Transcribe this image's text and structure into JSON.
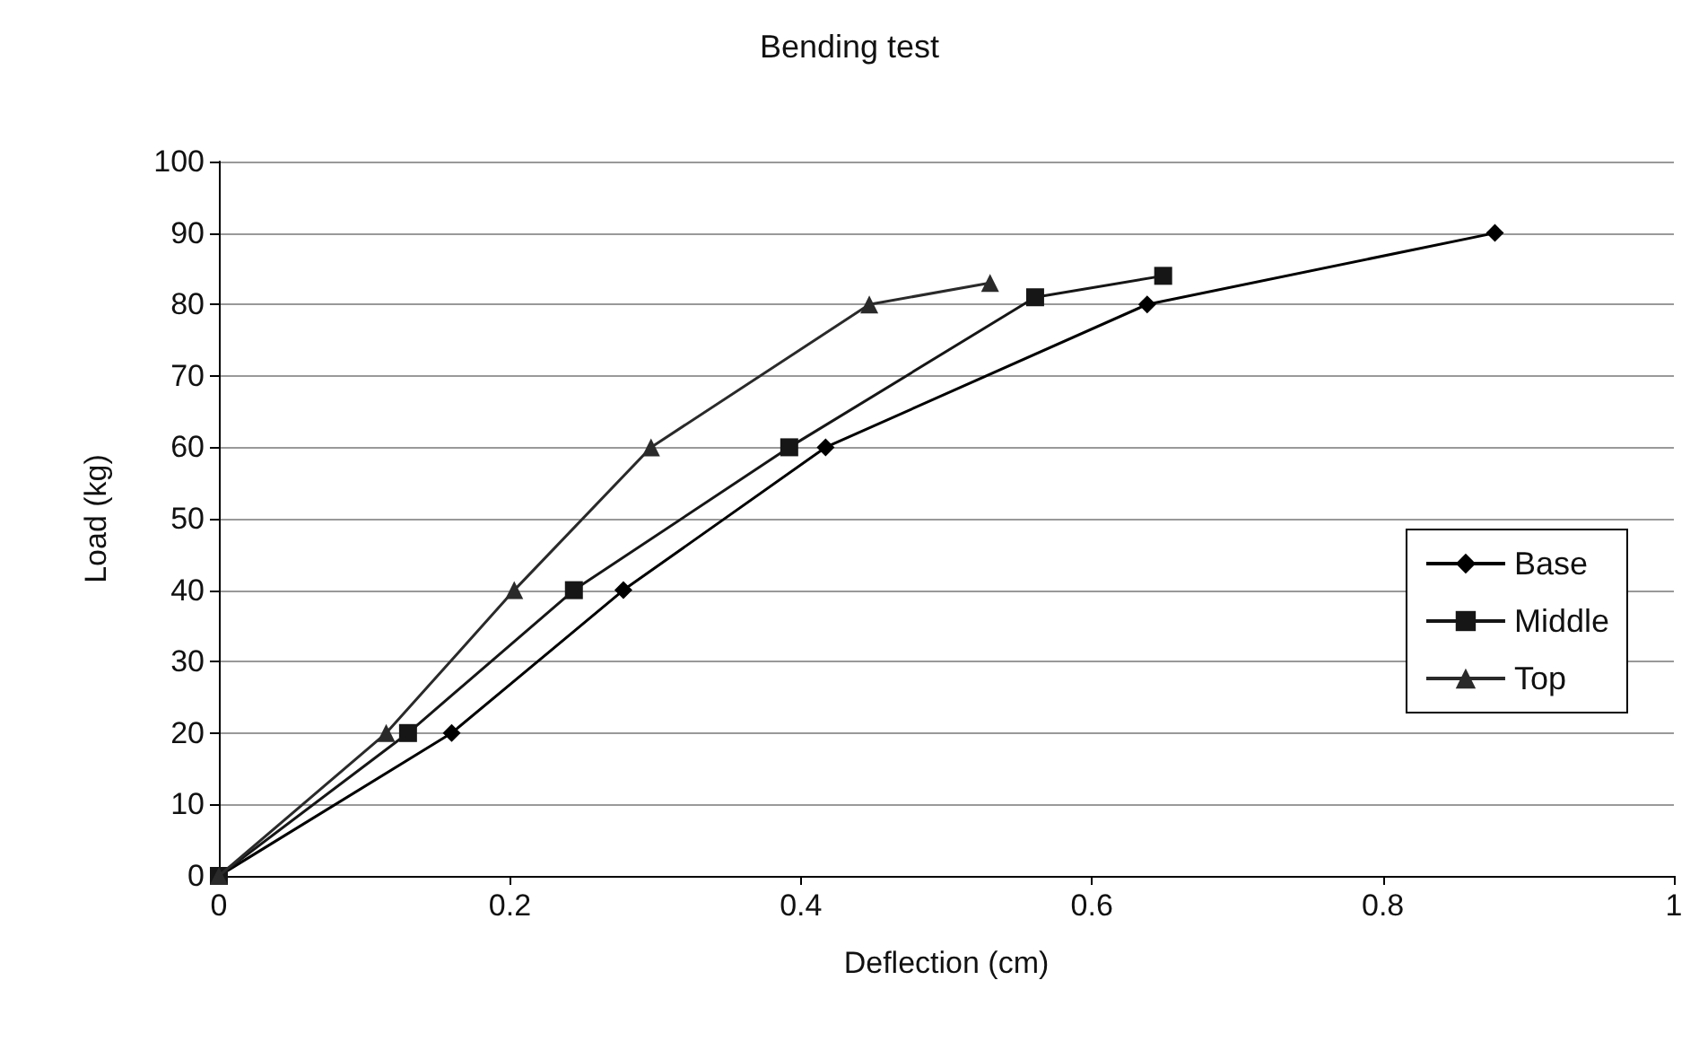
{
  "chart_data": {
    "type": "line",
    "title": "Bending test",
    "xlabel": "Deflection (cm)",
    "ylabel": "Load (kg)",
    "xlim": [
      0,
      1
    ],
    "xticks": [
      0,
      0.2,
      0.4,
      0.6,
      0.8,
      1
    ],
    "ylim": [
      0,
      100
    ],
    "yticks": [
      0,
      10,
      20,
      30,
      40,
      50,
      60,
      70,
      80,
      90,
      100
    ],
    "grid": "y",
    "legend": "right",
    "series": [
      {
        "name": "Base",
        "color": "#000000",
        "marker": "diamond",
        "x": [
          0,
          0.16,
          0.278,
          0.417,
          0.638,
          0.877
        ],
        "values": [
          0,
          20,
          40,
          60,
          80,
          90
        ]
      },
      {
        "name": "Middle",
        "color": "#161616",
        "marker": "square",
        "x": [
          0,
          0.13,
          0.244,
          0.392,
          0.561,
          0.649
        ],
        "values": [
          0,
          20,
          40,
          60,
          81,
          84
        ]
      },
      {
        "name": "Top",
        "color": "#2a2a2a",
        "marker": "triangle",
        "x": [
          0,
          0.115,
          0.203,
          0.297,
          0.447,
          0.53
        ],
        "values": [
          0,
          20,
          40,
          60,
          80,
          83
        ]
      }
    ]
  }
}
